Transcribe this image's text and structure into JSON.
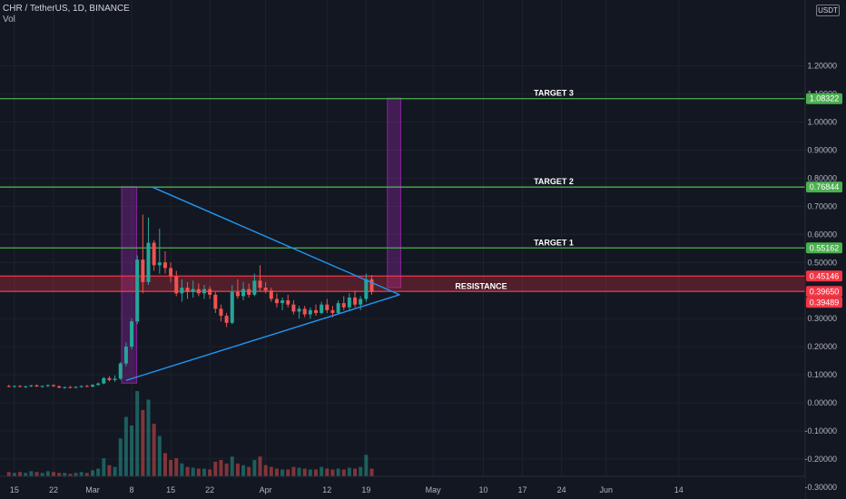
{
  "header": {
    "symbol": "CHR / TetherUS, 1D, BINANCE",
    "volume": "Vol"
  },
  "currency_badge": "USDT",
  "colors": {
    "background": "#131722",
    "grid": "#1e222d",
    "up": "#26a69a",
    "down": "#ef5350",
    "target_line": "#4caf50",
    "resistance_line": "#f23645",
    "resistance_fill": "#f23645",
    "trendline": "#2196f3",
    "range_box": "#9c27b0"
  },
  "chart_data": {
    "type": "candlestick",
    "title": "CHR / TetherUS, 1D, BINANCE",
    "y_axis": {
      "position": "right",
      "ticks": [
        1.2,
        1.1,
        1.0,
        0.9,
        0.8,
        0.7,
        0.6,
        0.5,
        0.4,
        0.3,
        0.2,
        0.1,
        0.0,
        -0.1,
        -0.2,
        -0.3
      ],
      "tick_labels": [
        "1.20000",
        "1.10000",
        "1.00000",
        "0.90000",
        "0.80000",
        "0.70000",
        "0.60000",
        "0.50000",
        "0.40000",
        "0.30000",
        "0.20000",
        "0.10000",
        "0.00000",
        "-0.10000",
        "-0.20000",
        "-0.30000"
      ]
    },
    "x_axis": {
      "ticks": [
        {
          "label": "15",
          "day": -14
        },
        {
          "label": "22",
          "day": -7
        },
        {
          "label": "Mar",
          "day": 0
        },
        {
          "label": "8",
          "day": 7
        },
        {
          "label": "15",
          "day": 14
        },
        {
          "label": "22",
          "day": 21
        },
        {
          "label": "Apr",
          "day": 31
        },
        {
          "label": "12",
          "day": 42
        },
        {
          "label": "19",
          "day": 49
        },
        {
          "label": "May",
          "day": 61
        },
        {
          "label": "10",
          "day": 70
        },
        {
          "label": "17",
          "day": 77
        },
        {
          "label": "24",
          "day": 84
        },
        {
          "label": "Jun",
          "day": 92
        },
        {
          "label": "14",
          "day": 105
        }
      ]
    },
    "levels": [
      {
        "name": "TARGET 3",
        "value": 1.08322,
        "tag": "1.08322",
        "kind": "target"
      },
      {
        "name": "TARGET 2",
        "value": 0.76844,
        "tag": "0.76844",
        "kind": "target"
      },
      {
        "name": "TARGET 1",
        "value": 0.55162,
        "tag": "0.55162",
        "kind": "target"
      },
      {
        "name": "",
        "value": 0.45146,
        "tag": "0.45146",
        "kind": "resistance"
      },
      {
        "name": "RESISTANCE",
        "value": 0.3965,
        "tag": "0.39650",
        "kind": "resistance"
      }
    ],
    "resistance_zone": [
      0.3965,
      0.45146
    ],
    "last_price": {
      "value": 0.39489,
      "tag": "0.39489"
    },
    "triangle": {
      "upper": [
        {
          "day": 10.5,
          "price": 0.77
        },
        {
          "day": 55,
          "price": 0.385
        }
      ],
      "lower": [
        {
          "day": 6,
          "price": 0.08
        },
        {
          "day": 55,
          "price": 0.385
        }
      ]
    },
    "range_boxes": [
      {
        "day_from": 5.2,
        "day_to": 7.9,
        "low": 0.07,
        "high": 0.77
      },
      {
        "day_from": 52.8,
        "day_to": 55.2,
        "low": 0.41,
        "high": 1.085
      }
    ],
    "candles": [
      {
        "day": -15,
        "o": 0.06,
        "h": 0.064,
        "l": 0.055,
        "c": 0.058,
        "v": 6
      },
      {
        "day": -14,
        "o": 0.058,
        "h": 0.062,
        "l": 0.054,
        "c": 0.06,
        "v": 5
      },
      {
        "day": -13,
        "o": 0.06,
        "h": 0.063,
        "l": 0.055,
        "c": 0.057,
        "v": 6
      },
      {
        "day": -12,
        "o": 0.057,
        "h": 0.061,
        "l": 0.053,
        "c": 0.059,
        "v": 5
      },
      {
        "day": -11,
        "o": 0.059,
        "h": 0.064,
        "l": 0.056,
        "c": 0.062,
        "v": 7
      },
      {
        "day": -10,
        "o": 0.062,
        "h": 0.066,
        "l": 0.057,
        "c": 0.058,
        "v": 6
      },
      {
        "day": -9,
        "o": 0.058,
        "h": 0.062,
        "l": 0.054,
        "c": 0.06,
        "v": 5
      },
      {
        "day": -8,
        "o": 0.06,
        "h": 0.065,
        "l": 0.056,
        "c": 0.063,
        "v": 7
      },
      {
        "day": -7,
        "o": 0.063,
        "h": 0.066,
        "l": 0.057,
        "c": 0.059,
        "v": 6
      },
      {
        "day": -6,
        "o": 0.059,
        "h": 0.062,
        "l": 0.052,
        "c": 0.054,
        "v": 5
      },
      {
        "day": -5,
        "o": 0.054,
        "h": 0.058,
        "l": 0.05,
        "c": 0.056,
        "v": 5
      },
      {
        "day": -4,
        "o": 0.056,
        "h": 0.06,
        "l": 0.052,
        "c": 0.054,
        "v": 4
      },
      {
        "day": -3,
        "o": 0.054,
        "h": 0.059,
        "l": 0.051,
        "c": 0.057,
        "v": 5
      },
      {
        "day": -2,
        "o": 0.057,
        "h": 0.062,
        "l": 0.054,
        "c": 0.06,
        "v": 6
      },
      {
        "day": -1,
        "o": 0.06,
        "h": 0.064,
        "l": 0.056,
        "c": 0.058,
        "v": 5
      },
      {
        "day": 0,
        "o": 0.058,
        "h": 0.066,
        "l": 0.055,
        "c": 0.064,
        "v": 8
      },
      {
        "day": 1,
        "o": 0.064,
        "h": 0.072,
        "l": 0.06,
        "c": 0.069,
        "v": 10
      },
      {
        "day": 2,
        "o": 0.069,
        "h": 0.092,
        "l": 0.066,
        "c": 0.088,
        "v": 22
      },
      {
        "day": 3,
        "o": 0.088,
        "h": 0.095,
        "l": 0.076,
        "c": 0.081,
        "v": 14
      },
      {
        "day": 4,
        "o": 0.081,
        "h": 0.098,
        "l": 0.075,
        "c": 0.086,
        "v": 12
      },
      {
        "day": 5,
        "o": 0.086,
        "h": 0.145,
        "l": 0.082,
        "c": 0.14,
        "v": 45
      },
      {
        "day": 6,
        "o": 0.14,
        "h": 0.215,
        "l": 0.13,
        "c": 0.2,
        "v": 70
      },
      {
        "day": 7,
        "o": 0.2,
        "h": 0.3,
        "l": 0.19,
        "c": 0.29,
        "v": 60
      },
      {
        "day": 8,
        "o": 0.29,
        "h": 0.525,
        "l": 0.28,
        "c": 0.51,
        "v": 100
      },
      {
        "day": 9,
        "o": 0.51,
        "h": 0.67,
        "l": 0.39,
        "c": 0.43,
        "v": 78
      },
      {
        "day": 10,
        "o": 0.43,
        "h": 0.66,
        "l": 0.42,
        "c": 0.57,
        "v": 90
      },
      {
        "day": 11,
        "o": 0.57,
        "h": 0.58,
        "l": 0.47,
        "c": 0.49,
        "v": 62
      },
      {
        "day": 12,
        "o": 0.49,
        "h": 0.62,
        "l": 0.46,
        "c": 0.5,
        "v": 48
      },
      {
        "day": 13,
        "o": 0.5,
        "h": 0.54,
        "l": 0.46,
        "c": 0.48,
        "v": 28
      },
      {
        "day": 14,
        "o": 0.48,
        "h": 0.5,
        "l": 0.43,
        "c": 0.45,
        "v": 20
      },
      {
        "day": 15,
        "o": 0.45,
        "h": 0.47,
        "l": 0.38,
        "c": 0.39,
        "v": 22
      },
      {
        "day": 16,
        "o": 0.39,
        "h": 0.44,
        "l": 0.36,
        "c": 0.41,
        "v": 16
      },
      {
        "day": 17,
        "o": 0.41,
        "h": 0.43,
        "l": 0.37,
        "c": 0.395,
        "v": 12
      },
      {
        "day": 18,
        "o": 0.395,
        "h": 0.435,
        "l": 0.375,
        "c": 0.405,
        "v": 11
      },
      {
        "day": 19,
        "o": 0.405,
        "h": 0.425,
        "l": 0.38,
        "c": 0.39,
        "v": 10
      },
      {
        "day": 20,
        "o": 0.39,
        "h": 0.42,
        "l": 0.37,
        "c": 0.405,
        "v": 10
      },
      {
        "day": 21,
        "o": 0.405,
        "h": 0.415,
        "l": 0.37,
        "c": 0.385,
        "v": 9
      },
      {
        "day": 22,
        "o": 0.385,
        "h": 0.395,
        "l": 0.32,
        "c": 0.335,
        "v": 18
      },
      {
        "day": 23,
        "o": 0.335,
        "h": 0.35,
        "l": 0.29,
        "c": 0.31,
        "v": 20
      },
      {
        "day": 24,
        "o": 0.31,
        "h": 0.32,
        "l": 0.27,
        "c": 0.285,
        "v": 16
      },
      {
        "day": 25,
        "o": 0.285,
        "h": 0.42,
        "l": 0.28,
        "c": 0.395,
        "v": 24
      },
      {
        "day": 26,
        "o": 0.395,
        "h": 0.44,
        "l": 0.37,
        "c": 0.38,
        "v": 16
      },
      {
        "day": 27,
        "o": 0.38,
        "h": 0.43,
        "l": 0.365,
        "c": 0.405,
        "v": 14
      },
      {
        "day": 28,
        "o": 0.405,
        "h": 0.425,
        "l": 0.375,
        "c": 0.385,
        "v": 12
      },
      {
        "day": 29,
        "o": 0.385,
        "h": 0.46,
        "l": 0.38,
        "c": 0.435,
        "v": 20
      },
      {
        "day": 30,
        "o": 0.435,
        "h": 0.49,
        "l": 0.4,
        "c": 0.41,
        "v": 24
      },
      {
        "day": 31,
        "o": 0.41,
        "h": 0.43,
        "l": 0.39,
        "c": 0.4,
        "v": 14
      },
      {
        "day": 32,
        "o": 0.4,
        "h": 0.41,
        "l": 0.36,
        "c": 0.37,
        "v": 12
      },
      {
        "day": 33,
        "o": 0.37,
        "h": 0.39,
        "l": 0.34,
        "c": 0.355,
        "v": 10
      },
      {
        "day": 34,
        "o": 0.355,
        "h": 0.375,
        "l": 0.33,
        "c": 0.365,
        "v": 9
      },
      {
        "day": 35,
        "o": 0.365,
        "h": 0.385,
        "l": 0.34,
        "c": 0.35,
        "v": 9
      },
      {
        "day": 36,
        "o": 0.35,
        "h": 0.365,
        "l": 0.315,
        "c": 0.325,
        "v": 12
      },
      {
        "day": 37,
        "o": 0.325,
        "h": 0.345,
        "l": 0.3,
        "c": 0.335,
        "v": 11
      },
      {
        "day": 38,
        "o": 0.335,
        "h": 0.345,
        "l": 0.305,
        "c": 0.315,
        "v": 10
      },
      {
        "day": 39,
        "o": 0.315,
        "h": 0.34,
        "l": 0.3,
        "c": 0.33,
        "v": 9
      },
      {
        "day": 40,
        "o": 0.33,
        "h": 0.35,
        "l": 0.31,
        "c": 0.32,
        "v": 9
      },
      {
        "day": 41,
        "o": 0.32,
        "h": 0.36,
        "l": 0.315,
        "c": 0.35,
        "v": 12
      },
      {
        "day": 42,
        "o": 0.35,
        "h": 0.37,
        "l": 0.32,
        "c": 0.33,
        "v": 10
      },
      {
        "day": 43,
        "o": 0.33,
        "h": 0.345,
        "l": 0.305,
        "c": 0.32,
        "v": 9
      },
      {
        "day": 44,
        "o": 0.32,
        "h": 0.365,
        "l": 0.315,
        "c": 0.355,
        "v": 10
      },
      {
        "day": 45,
        "o": 0.355,
        "h": 0.38,
        "l": 0.33,
        "c": 0.34,
        "v": 9
      },
      {
        "day": 46,
        "o": 0.34,
        "h": 0.39,
        "l": 0.33,
        "c": 0.375,
        "v": 11
      },
      {
        "day": 47,
        "o": 0.375,
        "h": 0.4,
        "l": 0.34,
        "c": 0.35,
        "v": 10
      },
      {
        "day": 48,
        "o": 0.35,
        "h": 0.38,
        "l": 0.33,
        "c": 0.37,
        "v": 12
      },
      {
        "day": 49,
        "o": 0.37,
        "h": 0.46,
        "l": 0.36,
        "c": 0.44,
        "v": 26
      },
      {
        "day": 50,
        "o": 0.44,
        "h": 0.455,
        "l": 0.385,
        "c": 0.395,
        "v": 10
      }
    ]
  }
}
